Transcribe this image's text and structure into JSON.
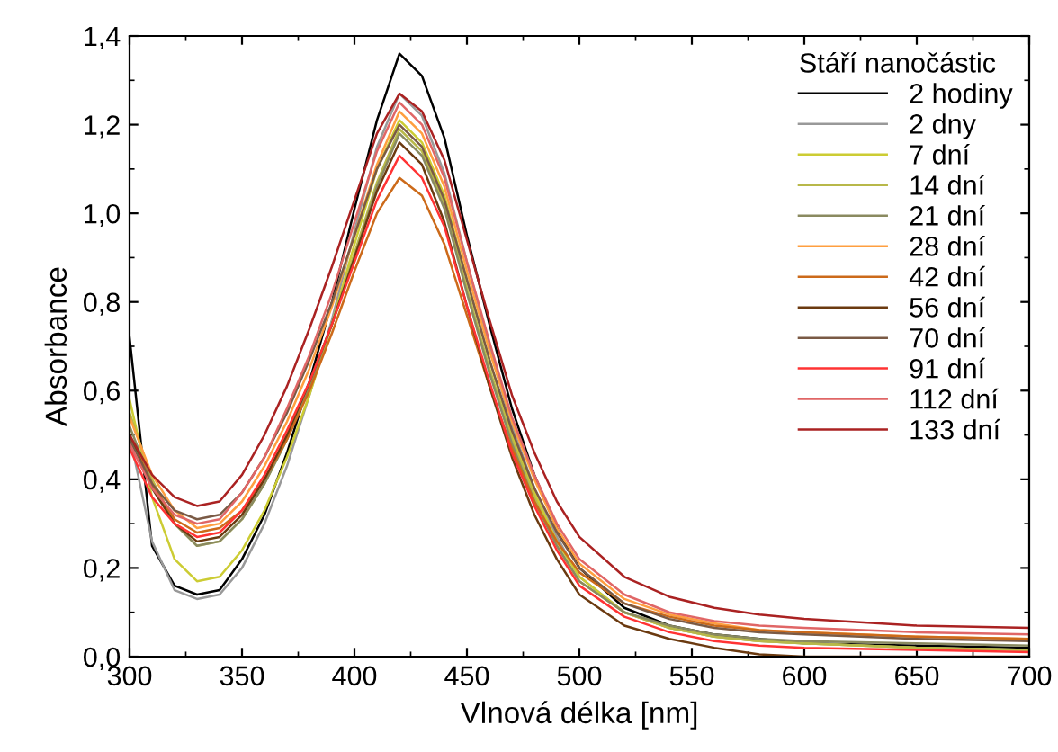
{
  "chart_data": {
    "type": "line",
    "xlabel": "Vlnová délka [nm]",
    "ylabel": "Absorbance",
    "legend_title": "Stáří nanočástic",
    "legend": "top right",
    "grid": false,
    "marker": "none",
    "line_style": "solid",
    "x": [
      300,
      310,
      320,
      330,
      340,
      350,
      360,
      370,
      380,
      390,
      400,
      410,
      420,
      430,
      440,
      450,
      460,
      470,
      480,
      490,
      500,
      520,
      540,
      560,
      580,
      600,
      650,
      700
    ],
    "xlim": [
      300,
      700
    ],
    "xticks": [
      300,
      350,
      400,
      450,
      500,
      550,
      600,
      650,
      700
    ],
    "ylim": [
      0,
      1.4
    ],
    "yticks": [
      {
        "value": 0,
        "label": "0,0"
      },
      {
        "value": 0.2,
        "label": "0,2"
      },
      {
        "value": 0.4,
        "label": "0,4"
      },
      {
        "value": 0.6,
        "label": "0,6"
      },
      {
        "value": 0.8,
        "label": "0,8"
      },
      {
        "value": 1.0,
        "label": "1,0"
      },
      {
        "value": 1.2,
        "label": "1,2"
      },
      {
        "value": 1.4,
        "label": "1,4"
      }
    ],
    "series": [
      {
        "name": "2 hodiny",
        "color": "#000000",
        "values": [
          0.72,
          0.25,
          0.16,
          0.14,
          0.15,
          0.22,
          0.32,
          0.46,
          0.62,
          0.8,
          1.01,
          1.21,
          1.36,
          1.31,
          1.17,
          0.95,
          0.75,
          0.56,
          0.41,
          0.29,
          0.2,
          0.11,
          0.07,
          0.05,
          0.04,
          0.03,
          0.025,
          0.02
        ]
      },
      {
        "name": "2 dny",
        "color": "#999999",
        "values": [
          0.5,
          0.26,
          0.15,
          0.13,
          0.14,
          0.2,
          0.3,
          0.43,
          0.59,
          0.76,
          0.96,
          1.15,
          1.27,
          1.22,
          1.09,
          0.89,
          0.7,
          0.52,
          0.38,
          0.27,
          0.18,
          0.1,
          0.065,
          0.045,
          0.035,
          0.03,
          0.02,
          0.015
        ]
      },
      {
        "name": "7 dní",
        "color": "#cccc33",
        "values": [
          0.58,
          0.36,
          0.22,
          0.17,
          0.18,
          0.24,
          0.33,
          0.45,
          0.59,
          0.75,
          0.93,
          1.1,
          1.21,
          1.16,
          1.04,
          0.85,
          0.67,
          0.5,
          0.37,
          0.26,
          0.18,
          0.1,
          0.065,
          0.045,
          0.035,
          0.03,
          0.02,
          0.015
        ]
      },
      {
        "name": "14 dní",
        "color": "#b8b84a",
        "values": [
          0.55,
          0.4,
          0.3,
          0.25,
          0.26,
          0.31,
          0.39,
          0.49,
          0.61,
          0.75,
          0.91,
          1.07,
          1.19,
          1.14,
          1.02,
          0.83,
          0.65,
          0.49,
          0.36,
          0.25,
          0.17,
          0.1,
          0.065,
          0.045,
          0.035,
          0.03,
          0.02,
          0.015
        ]
      },
      {
        "name": "21 dní",
        "color": "#8a8a60",
        "values": [
          0.52,
          0.39,
          0.3,
          0.25,
          0.26,
          0.31,
          0.39,
          0.49,
          0.61,
          0.75,
          0.9,
          1.06,
          1.18,
          1.13,
          1.01,
          0.82,
          0.64,
          0.48,
          0.35,
          0.25,
          0.17,
          0.1,
          0.07,
          0.05,
          0.04,
          0.035,
          0.03,
          0.025
        ]
      },
      {
        "name": "28 dní",
        "color": "#ff9f40",
        "values": [
          0.54,
          0.41,
          0.33,
          0.29,
          0.3,
          0.35,
          0.43,
          0.53,
          0.65,
          0.79,
          0.95,
          1.11,
          1.23,
          1.18,
          1.06,
          0.87,
          0.69,
          0.53,
          0.4,
          0.29,
          0.21,
          0.13,
          0.095,
          0.075,
          0.06,
          0.055,
          0.045,
          0.04
        ]
      },
      {
        "name": "42 dní",
        "color": "#cc6a1a",
        "values": [
          0.5,
          0.39,
          0.31,
          0.28,
          0.29,
          0.33,
          0.4,
          0.49,
          0.6,
          0.73,
          0.87,
          1.0,
          1.08,
          1.04,
          0.93,
          0.77,
          0.61,
          0.47,
          0.35,
          0.26,
          0.19,
          0.12,
          0.09,
          0.07,
          0.06,
          0.055,
          0.045,
          0.04
        ]
      },
      {
        "name": "56 dní",
        "color": "#6b3a10",
        "values": [
          0.5,
          0.38,
          0.3,
          0.26,
          0.27,
          0.32,
          0.4,
          0.5,
          0.62,
          0.75,
          0.9,
          1.05,
          1.16,
          1.11,
          0.98,
          0.79,
          0.61,
          0.45,
          0.32,
          0.22,
          0.14,
          0.07,
          0.04,
          0.02,
          0.005,
          0.0,
          0.0,
          0.0
        ]
      },
      {
        "name": "70 dní",
        "color": "#7a5a45",
        "values": [
          0.49,
          0.39,
          0.33,
          0.31,
          0.32,
          0.37,
          0.45,
          0.55,
          0.67,
          0.8,
          0.95,
          1.1,
          1.2,
          1.15,
          1.03,
          0.85,
          0.67,
          0.51,
          0.38,
          0.28,
          0.2,
          0.12,
          0.085,
          0.065,
          0.055,
          0.05,
          0.04,
          0.035
        ]
      },
      {
        "name": "91 dní",
        "color": "#ff3333",
        "values": [
          0.47,
          0.36,
          0.3,
          0.27,
          0.28,
          0.33,
          0.41,
          0.51,
          0.62,
          0.75,
          0.89,
          1.03,
          1.13,
          1.08,
          0.97,
          0.79,
          0.62,
          0.46,
          0.34,
          0.24,
          0.16,
          0.09,
          0.055,
          0.035,
          0.025,
          0.02,
          0.015,
          0.01
        ]
      },
      {
        "name": "112 dní",
        "color": "#e06666",
        "values": [
          0.48,
          0.38,
          0.32,
          0.3,
          0.31,
          0.37,
          0.45,
          0.56,
          0.68,
          0.82,
          0.98,
          1.14,
          1.25,
          1.2,
          1.08,
          0.89,
          0.71,
          0.54,
          0.41,
          0.3,
          0.22,
          0.14,
          0.1,
          0.08,
          0.07,
          0.065,
          0.055,
          0.05
        ]
      },
      {
        "name": "133 dní",
        "color": "#aa2222",
        "values": [
          0.5,
          0.41,
          0.36,
          0.34,
          0.35,
          0.41,
          0.5,
          0.61,
          0.74,
          0.88,
          1.03,
          1.18,
          1.27,
          1.23,
          1.12,
          0.94,
          0.76,
          0.59,
          0.46,
          0.35,
          0.27,
          0.18,
          0.135,
          0.11,
          0.095,
          0.085,
          0.07,
          0.065
        ]
      }
    ]
  }
}
